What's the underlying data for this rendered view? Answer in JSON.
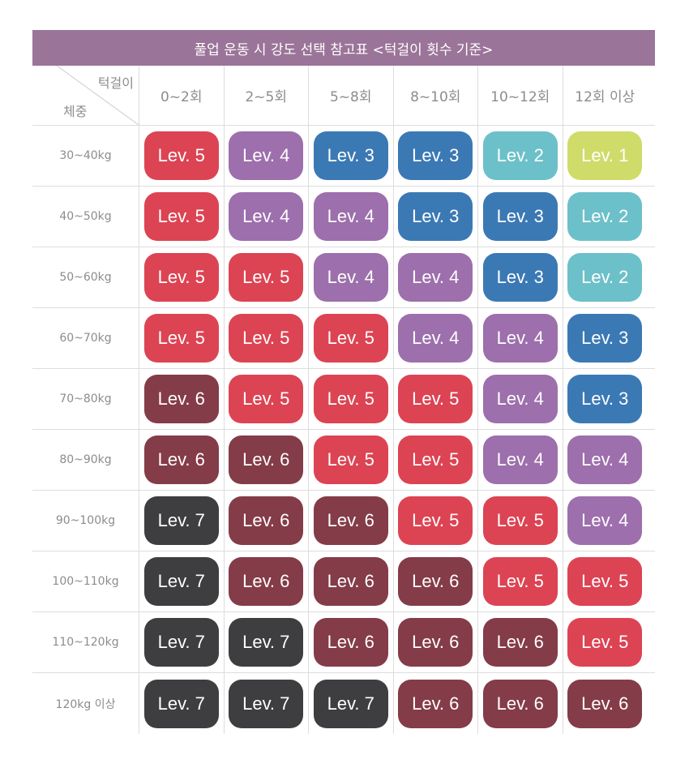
{
  "title": "풀업 운동 시 강도 선택 참고표 <턱걸이 횟수 기준>",
  "corner": {
    "top_label": "턱걸이",
    "bottom_label": "체중"
  },
  "columns": [
    "0~2회",
    "2~5회",
    "5~8회",
    "8~10회",
    "10~12회",
    "12회 이상"
  ],
  "level_prefix": "Lev. ",
  "level_colors": {
    "1": "#cfdc6a",
    "2": "#6cc0c9",
    "3": "#3b79b4",
    "4": "#9d6fac",
    "5": "#dc4453",
    "6": "#843c48",
    "7": "#3e3e40"
  },
  "rows": [
    {
      "label": "30~40kg",
      "levels": [
        5,
        4,
        3,
        3,
        2,
        1
      ]
    },
    {
      "label": "40~50kg",
      "levels": [
        5,
        4,
        4,
        3,
        3,
        2
      ]
    },
    {
      "label": "50~60kg",
      "levels": [
        5,
        5,
        4,
        4,
        3,
        2
      ]
    },
    {
      "label": "60~70kg",
      "levels": [
        5,
        5,
        5,
        4,
        4,
        3
      ]
    },
    {
      "label": "70~80kg",
      "levels": [
        6,
        5,
        5,
        5,
        4,
        3
      ]
    },
    {
      "label": "80~90kg",
      "levels": [
        6,
        6,
        5,
        5,
        4,
        4
      ]
    },
    {
      "label": "90~100kg",
      "levels": [
        7,
        6,
        6,
        5,
        5,
        4
      ]
    },
    {
      "label": "100~110kg",
      "levels": [
        7,
        6,
        6,
        6,
        5,
        5
      ]
    },
    {
      "label": "110~120kg",
      "levels": [
        7,
        7,
        6,
        6,
        6,
        5
      ]
    },
    {
      "label": "120kg 이상",
      "levels": [
        7,
        7,
        7,
        6,
        6,
        6
      ]
    }
  ]
}
